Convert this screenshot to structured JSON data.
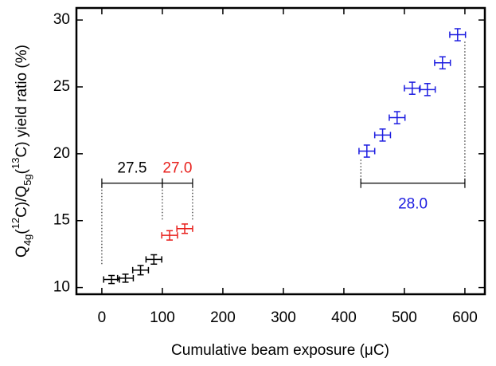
{
  "chart_data": {
    "type": "scatter",
    "xlabel": "Cumulative beam exposure (μC)",
    "ylabel": [
      "Q",
      "4g",
      "(",
      "12",
      "C)/Q",
      "5g",
      "(",
      "13",
      "C) yield ratio (%)"
    ],
    "xlim": [
      -42,
      633
    ],
    "xticks": [
      0,
      100,
      200,
      300,
      400,
      500,
      600
    ],
    "ylim": [
      9.5,
      30.9
    ],
    "yticks": [
      10,
      15,
      20,
      25,
      30
    ],
    "series": [
      {
        "color": "#000000",
        "x": [
          16,
          39,
          64,
          86
        ],
        "values": [
          10.6,
          10.7,
          11.3,
          12.1
        ],
        "xerr": [
          13,
          13,
          13,
          13
        ],
        "yerr": [
          0.3,
          0.3,
          0.35,
          0.35
        ]
      },
      {
        "color": "#e8201c",
        "x": [
          112,
          137
        ],
        "values": [
          13.9,
          14.4
        ],
        "xerr": [
          13,
          13
        ],
        "yerr": [
          0.35,
          0.35
        ]
      },
      {
        "color": "#1c1ce0",
        "x": [
          438,
          464,
          488,
          513,
          538,
          563,
          588
        ],
        "values": [
          20.2,
          21.4,
          22.7,
          24.9,
          24.8,
          26.8,
          28.9
        ],
        "xerr": [
          13,
          13,
          13,
          13,
          13,
          13,
          13
        ],
        "yerr": [
          0.45,
          0.45,
          0.45,
          0.45,
          0.45,
          0.45,
          0.45
        ]
      }
    ],
    "annotations": [
      {
        "text": "27.5",
        "color": "#000000",
        "x": [
          0,
          100
        ],
        "y": 17.8,
        "label_y": 18.9,
        "dotted": [
          [
            0,
            11.6
          ],
          [
            100,
            15.0
          ]
        ]
      },
      {
        "text": "27.0",
        "color": "#e8201c",
        "x": [
          100,
          150
        ],
        "y": 17.8,
        "label_y": 18.9,
        "dotted": [
          [
            150,
            15.0
          ]
        ]
      },
      {
        "text": "28.0",
        "color": "#1c1ce0",
        "x": [
          428,
          600
        ],
        "y": 17.8,
        "label_y": 16.2,
        "dotted": [
          [
            428,
            19.6
          ],
          [
            600,
            28.5
          ]
        ]
      }
    ]
  }
}
